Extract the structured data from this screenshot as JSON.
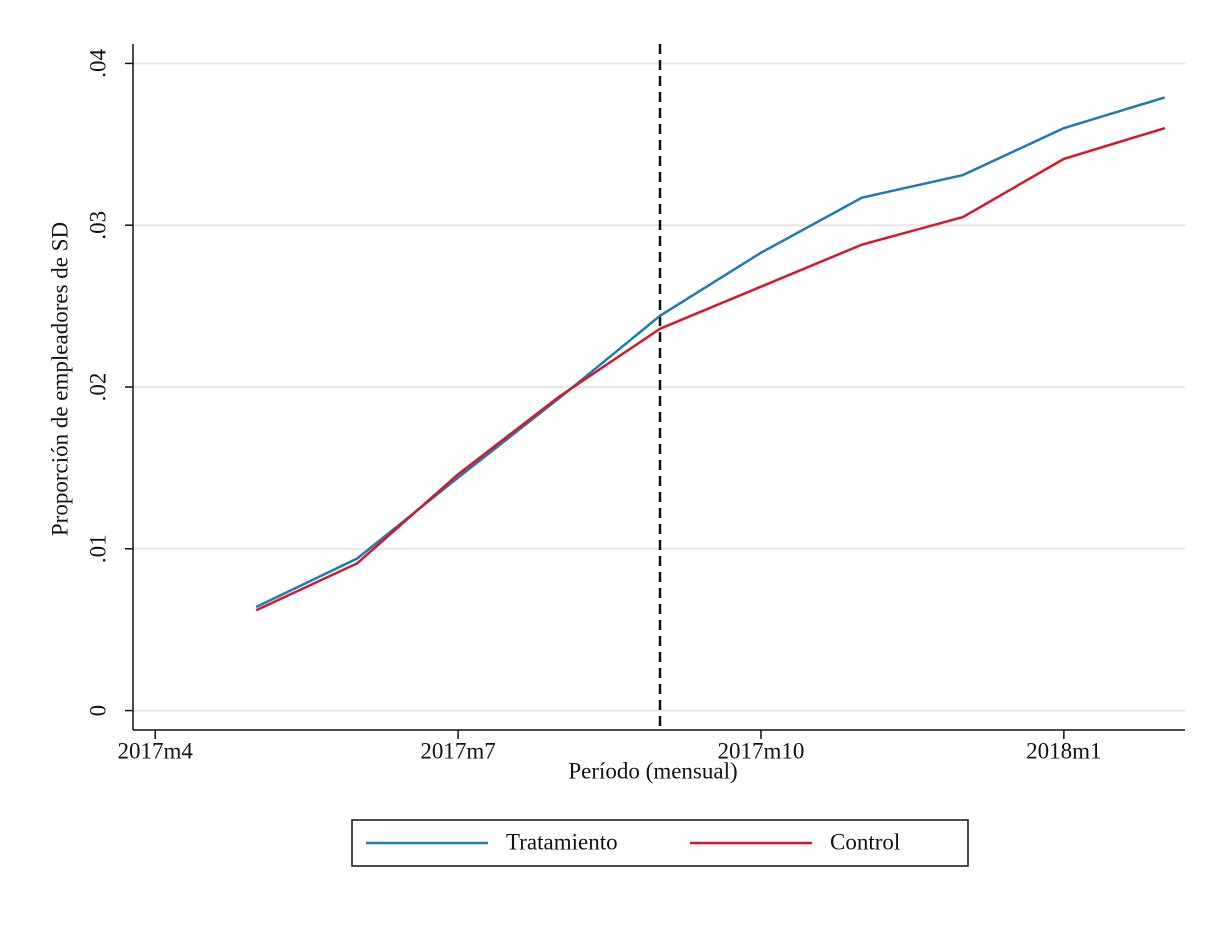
{
  "chart_data": {
    "type": "line",
    "x_label": "Período (mensual)",
    "y_label": "Proporción de empleadores de SD",
    "x": [
      688,
      689,
      690,
      691,
      692,
      693,
      694,
      695,
      696,
      697
    ],
    "series": [
      {
        "name": "Tratamiento",
        "color": "#1f7bb0",
        "values": [
          0.0064,
          0.0094,
          0.0144,
          0.0193,
          0.0244,
          0.0283,
          0.0317,
          0.0331,
          0.036,
          0.0379
        ]
      },
      {
        "name": "Control",
        "color": "#d6172b",
        "values": [
          0.0062,
          0.0091,
          0.0146,
          0.0194,
          0.0236,
          0.0262,
          0.0288,
          0.0305,
          0.0341,
          0.036
        ]
      }
    ],
    "xlim": [
      686.78,
      697.2
    ],
    "xticks": [
      {
        "value": 687,
        "label": "2017m4"
      },
      {
        "value": 690,
        "label": "2017m7"
      },
      {
        "value": 693,
        "label": "2017m10"
      },
      {
        "value": 696,
        "label": "2018m1"
      }
    ],
    "ylim": [
      -0.0012,
      0.0412
    ],
    "yticks": [
      0,
      {
        "value": 0.01,
        "label": ".01"
      },
      {
        "value": 0.02,
        "label": ".02"
      },
      {
        "value": 0.03,
        "label": ".03"
      },
      {
        "value": 0.04,
        "label": ".04"
      }
    ],
    "vline": 692,
    "grid": true,
    "legend": "bottom"
  }
}
